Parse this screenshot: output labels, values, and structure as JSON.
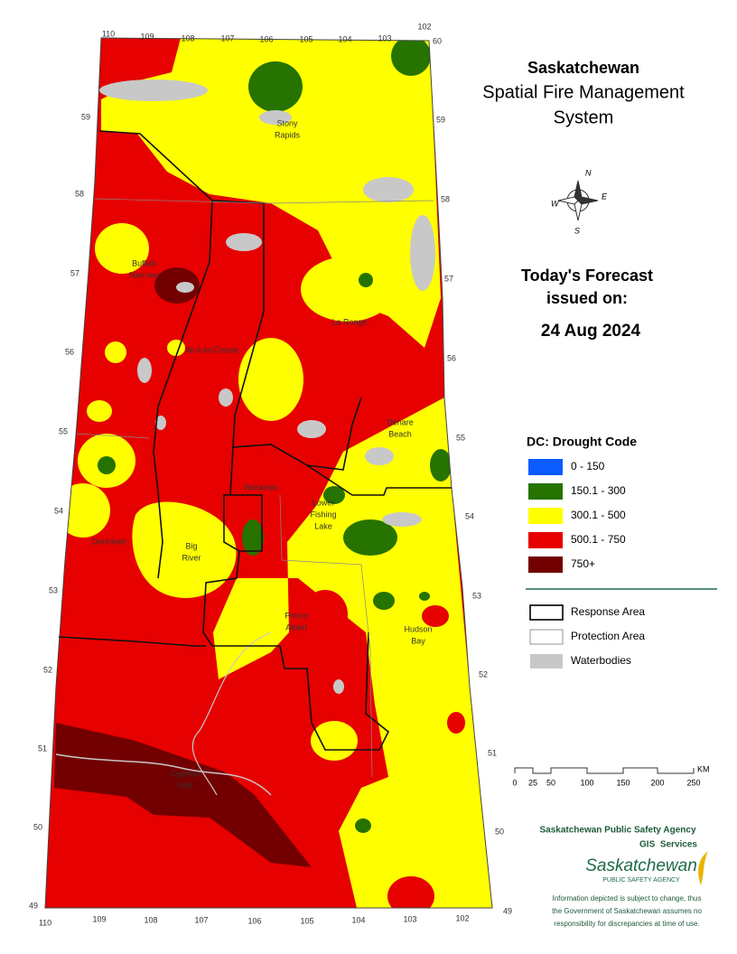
{
  "title": [
    "Saskatchewan",
    "Spatial Fire Management",
    "System"
  ],
  "forecast": {
    "heading": [
      "Today's Forecast",
      "issued on:"
    ],
    "date": "24 Aug 2024"
  },
  "legend": {
    "title": "DC: Drought Code",
    "classes": [
      {
        "label": "0 - 150",
        "color": "#0a5cff"
      },
      {
        "label": "150.1 - 300",
        "color": "#267300"
      },
      {
        "label": "300.1 - 500",
        "color": "#ffff00"
      },
      {
        "label": "500.1 - 750",
        "color": "#e60000"
      },
      {
        "label": "750+",
        "color": "#730000"
      }
    ],
    "boundaries": [
      {
        "label": "Response Area"
      },
      {
        "label": "Protection Area"
      },
      {
        "label": "Waterbodies",
        "color": "#c8c8c8"
      }
    ]
  },
  "scale_bar": {
    "labels": [
      "0",
      "25",
      "50",
      "100",
      "150",
      "200",
      "250"
    ],
    "unit": "KM"
  },
  "compass": [
    "N",
    "W",
    "E",
    "S"
  ],
  "map": {
    "longitude_top": [
      "110",
      "109",
      "108",
      "107",
      "106",
      "105",
      "104",
      "103",
      "102"
    ],
    "longitude_bottom": [
      "110",
      "109",
      "108",
      "107",
      "106",
      "105",
      "104",
      "103",
      "102"
    ],
    "latitude_left": [
      "59",
      "58",
      "57",
      "56",
      "55",
      "54",
      "53",
      "52",
      "51",
      "50",
      "49"
    ],
    "latitude_right": [
      "60",
      "59",
      "58",
      "57",
      "56",
      "55",
      "54",
      "53",
      "52",
      "51",
      "50",
      "49"
    ],
    "places": [
      [
        "Stony",
        "Rapids"
      ],
      [
        "Buffalo",
        "Narrows"
      ],
      [
        "La Ronge"
      ],
      [
        "Ile-à-la-Crosse"
      ],
      [
        "Denare",
        "Beach"
      ],
      [
        "Waskesiu"
      ],
      [
        "Lower",
        "Fishing",
        "Lake"
      ],
      [
        "Dorintosh"
      ],
      [
        "Big",
        "River"
      ],
      [
        "Prince",
        "Albert"
      ],
      [
        "Hudson",
        "Bay"
      ],
      [
        "Cypress",
        "Hills"
      ]
    ]
  },
  "footer": {
    "agency": "Saskatchewan Public Safety Agency",
    "unit": "GIS  Services",
    "logo": [
      "Saskatchewan",
      "PUBLIC SAFETY AGENCY"
    ],
    "disclaimer": [
      "Information depicted is subject to change, thus",
      "the Government of Saskatchewan assumes no",
      "responsibility for discrepancies at time of use."
    ]
  }
}
